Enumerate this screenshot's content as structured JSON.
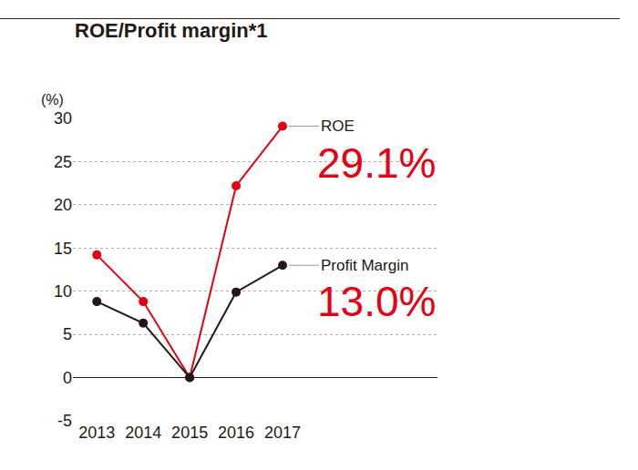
{
  "chart_data": {
    "type": "line",
    "title": "ROE/Profit margin*1",
    "y_label": "(%)",
    "categories": [
      "2013",
      "2014",
      "2015",
      "2016",
      "2017"
    ],
    "series": [
      {
        "name": "ROE",
        "color": "#e60012",
        "marker": "circle",
        "values": [
          14.2,
          8.8,
          0,
          22.2,
          29.1
        ],
        "value_labels": [
          null,
          null,
          null,
          null,
          "29.1%"
        ]
      },
      {
        "name": "Profit Margin",
        "color": "#231815",
        "marker": "circle",
        "values": [
          8.8,
          6.3,
          0,
          9.9,
          13.0
        ],
        "value_labels": [
          null,
          null,
          null,
          null,
          "13.0%"
        ]
      }
    ],
    "ylim": [
      -5,
      30
    ],
    "yticks": [
      -5,
      0,
      5,
      10,
      15,
      20,
      25,
      30
    ],
    "grid": true,
    "legend": false
  }
}
